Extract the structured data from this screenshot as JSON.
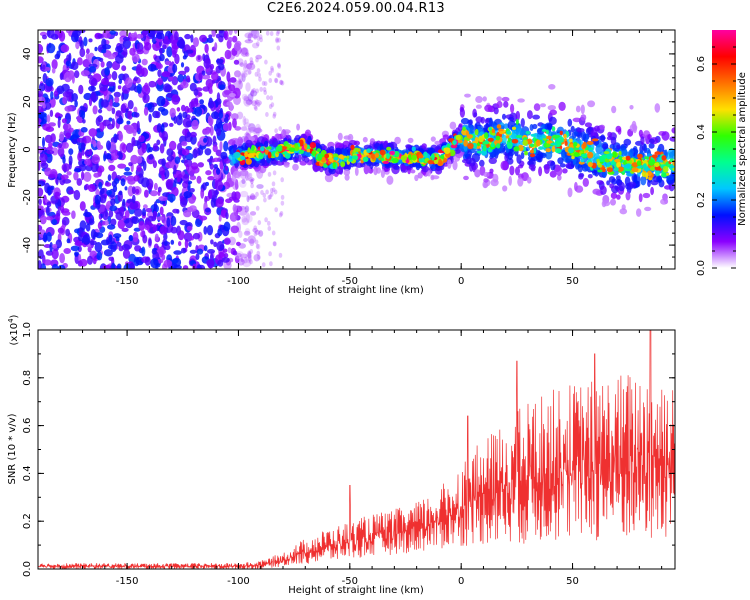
{
  "title": "C2E6.2024.059.00.04.R13",
  "chart_data": [
    {
      "type": "heatmap",
      "xlabel": "Height of straight line (km)",
      "ylabel": "Frequency (Hz)",
      "xlim": [
        -190,
        96
      ],
      "ylim": [
        -50,
        50
      ],
      "xticks": [
        -150,
        -100,
        -50,
        0,
        50
      ],
      "yticks": [
        -40,
        -20,
        0,
        20,
        40
      ],
      "colorbar": {
        "label": "Normalized spectral amplitude",
        "range": [
          0.0,
          0.7
        ],
        "ticks": [
          0.0,
          0.2,
          0.4,
          0.6
        ],
        "tick_labels": [
          "0.0",
          "0.2",
          "0.4",
          "0.6"
        ],
        "colors": [
          "#ffffff",
          "#8a00ff",
          "#0010ff",
          "#00c8ff",
          "#00ff90",
          "#30ff00",
          "#ffe000",
          "#ff7000",
          "#ff0000",
          "#ff00a0"
        ]
      },
      "signal_band": {
        "x_range": [
          -103,
          96
        ],
        "center_frequency": [
          {
            "x": -100,
            "y": -3
          },
          {
            "x": -85,
            "y": -1
          },
          {
            "x": -70,
            "y": 1
          },
          {
            "x": -60,
            "y": -5
          },
          {
            "x": -45,
            "y": -2
          },
          {
            "x": -30,
            "y": -3
          },
          {
            "x": -10,
            "y": -4
          },
          {
            "x": 0,
            "y": 5
          },
          {
            "x": 10,
            "y": 3
          },
          {
            "x": 20,
            "y": 6
          },
          {
            "x": 30,
            "y": 3
          },
          {
            "x": 45,
            "y": 3
          },
          {
            "x": 55,
            "y": -1
          },
          {
            "x": 65,
            "y": -5
          },
          {
            "x": 80,
            "y": -7
          },
          {
            "x": 95,
            "y": -5
          }
        ]
      },
      "noise_region_x": [
        -190,
        -90
      ]
    },
    {
      "type": "line",
      "xlabel": "Height of straight line (km)",
      "ylabel": "SNR (10 * v/v)",
      "y_multiplier": "(x10",
      "y_multiplier_exponent": "4",
      "y_multiplier_close": ")",
      "xlim": [
        -190,
        96
      ],
      "ylim": [
        0,
        10000
      ],
      "xticks": [
        -150,
        -100,
        -50,
        0,
        50
      ],
      "yticks": [
        0,
        2000,
        4000,
        6000,
        8000,
        10000
      ],
      "ytick_labels": [
        "0.0",
        "0.2",
        "0.4",
        "0.6",
        "0.8",
        "1.0"
      ],
      "color": "#ef3030",
      "envelope": [
        {
          "x": -190,
          "low": 0,
          "high": 250
        },
        {
          "x": -100,
          "low": 0,
          "high": 250
        },
        {
          "x": -90,
          "low": 0,
          "high": 350
        },
        {
          "x": -80,
          "low": 100,
          "high": 700
        },
        {
          "x": -70,
          "low": 200,
          "high": 1300
        },
        {
          "x": -60,
          "low": 300,
          "high": 1700
        },
        {
          "x": -50,
          "low": 400,
          "high": 2000
        },
        {
          "x": -40,
          "low": 500,
          "high": 2300
        },
        {
          "x": -30,
          "low": 600,
          "high": 2500
        },
        {
          "x": -20,
          "low": 700,
          "high": 2800
        },
        {
          "x": -10,
          "low": 800,
          "high": 3400
        },
        {
          "x": -5,
          "low": 900,
          "high": 3900
        },
        {
          "x": 0,
          "low": 900,
          "high": 4500
        },
        {
          "x": 5,
          "low": 1000,
          "high": 5000
        },
        {
          "x": 10,
          "low": 1000,
          "high": 5400
        },
        {
          "x": 20,
          "low": 1000,
          "high": 6200
        },
        {
          "x": 30,
          "low": 1000,
          "high": 7100
        },
        {
          "x": 40,
          "low": 1100,
          "high": 7500
        },
        {
          "x": 50,
          "low": 1100,
          "high": 7800
        },
        {
          "x": 60,
          "low": 1100,
          "high": 8000
        },
        {
          "x": 70,
          "low": 1100,
          "high": 8200
        },
        {
          "x": 80,
          "low": 1100,
          "high": 8400
        },
        {
          "x": 96,
          "low": 1100,
          "high": 8200
        }
      ],
      "peaks": [
        {
          "x": -50,
          "y": 3500
        },
        {
          "x": 25,
          "y": 8700
        },
        {
          "x": 60,
          "y": 9000
        },
        {
          "x": 85,
          "y": 10000
        },
        {
          "x": 3,
          "y": 6400
        }
      ]
    }
  ]
}
